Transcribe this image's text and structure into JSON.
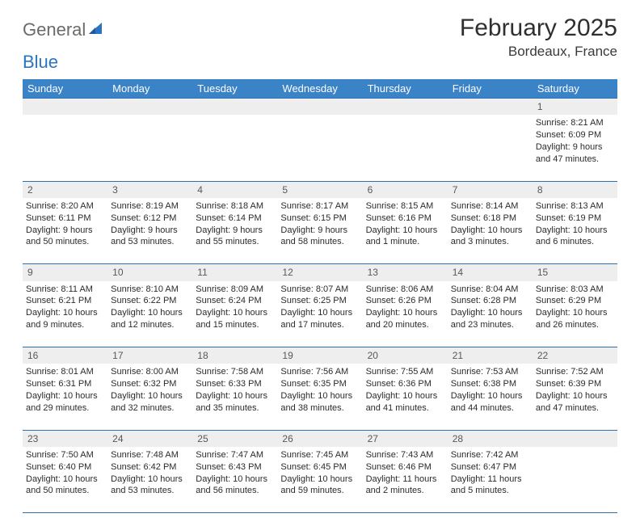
{
  "brand": {
    "word1": "General",
    "word2": "Blue"
  },
  "title": "February 2025",
  "location": "Bordeaux, France",
  "colors": {
    "header_bg": "#3b83c7",
    "header_text": "#ffffff",
    "daynum_bg": "#eeeeee",
    "rule": "#2f6fae",
    "body_text": "#2b2b2b",
    "title_text": "#2f2f2f",
    "logo_gray": "#6b6b6b",
    "logo_blue": "#2b74c0"
  },
  "weekdays": [
    "Sunday",
    "Monday",
    "Tuesday",
    "Wednesday",
    "Thursday",
    "Friday",
    "Saturday"
  ],
  "weeks": [
    [
      null,
      null,
      null,
      null,
      null,
      null,
      {
        "n": "1",
        "sr": "Sunrise: 8:21 AM",
        "ss": "Sunset: 6:09 PM",
        "d1": "Daylight: 9 hours",
        "d2": "and 47 minutes."
      }
    ],
    [
      {
        "n": "2",
        "sr": "Sunrise: 8:20 AM",
        "ss": "Sunset: 6:11 PM",
        "d1": "Daylight: 9 hours",
        "d2": "and 50 minutes."
      },
      {
        "n": "3",
        "sr": "Sunrise: 8:19 AM",
        "ss": "Sunset: 6:12 PM",
        "d1": "Daylight: 9 hours",
        "d2": "and 53 minutes."
      },
      {
        "n": "4",
        "sr": "Sunrise: 8:18 AM",
        "ss": "Sunset: 6:14 PM",
        "d1": "Daylight: 9 hours",
        "d2": "and 55 minutes."
      },
      {
        "n": "5",
        "sr": "Sunrise: 8:17 AM",
        "ss": "Sunset: 6:15 PM",
        "d1": "Daylight: 9 hours",
        "d2": "and 58 minutes."
      },
      {
        "n": "6",
        "sr": "Sunrise: 8:15 AM",
        "ss": "Sunset: 6:16 PM",
        "d1": "Daylight: 10 hours",
        "d2": "and 1 minute."
      },
      {
        "n": "7",
        "sr": "Sunrise: 8:14 AM",
        "ss": "Sunset: 6:18 PM",
        "d1": "Daylight: 10 hours",
        "d2": "and 3 minutes."
      },
      {
        "n": "8",
        "sr": "Sunrise: 8:13 AM",
        "ss": "Sunset: 6:19 PM",
        "d1": "Daylight: 10 hours",
        "d2": "and 6 minutes."
      }
    ],
    [
      {
        "n": "9",
        "sr": "Sunrise: 8:11 AM",
        "ss": "Sunset: 6:21 PM",
        "d1": "Daylight: 10 hours",
        "d2": "and 9 minutes."
      },
      {
        "n": "10",
        "sr": "Sunrise: 8:10 AM",
        "ss": "Sunset: 6:22 PM",
        "d1": "Daylight: 10 hours",
        "d2": "and 12 minutes."
      },
      {
        "n": "11",
        "sr": "Sunrise: 8:09 AM",
        "ss": "Sunset: 6:24 PM",
        "d1": "Daylight: 10 hours",
        "d2": "and 15 minutes."
      },
      {
        "n": "12",
        "sr": "Sunrise: 8:07 AM",
        "ss": "Sunset: 6:25 PM",
        "d1": "Daylight: 10 hours",
        "d2": "and 17 minutes."
      },
      {
        "n": "13",
        "sr": "Sunrise: 8:06 AM",
        "ss": "Sunset: 6:26 PM",
        "d1": "Daylight: 10 hours",
        "d2": "and 20 minutes."
      },
      {
        "n": "14",
        "sr": "Sunrise: 8:04 AM",
        "ss": "Sunset: 6:28 PM",
        "d1": "Daylight: 10 hours",
        "d2": "and 23 minutes."
      },
      {
        "n": "15",
        "sr": "Sunrise: 8:03 AM",
        "ss": "Sunset: 6:29 PM",
        "d1": "Daylight: 10 hours",
        "d2": "and 26 minutes."
      }
    ],
    [
      {
        "n": "16",
        "sr": "Sunrise: 8:01 AM",
        "ss": "Sunset: 6:31 PM",
        "d1": "Daylight: 10 hours",
        "d2": "and 29 minutes."
      },
      {
        "n": "17",
        "sr": "Sunrise: 8:00 AM",
        "ss": "Sunset: 6:32 PM",
        "d1": "Daylight: 10 hours",
        "d2": "and 32 minutes."
      },
      {
        "n": "18",
        "sr": "Sunrise: 7:58 AM",
        "ss": "Sunset: 6:33 PM",
        "d1": "Daylight: 10 hours",
        "d2": "and 35 minutes."
      },
      {
        "n": "19",
        "sr": "Sunrise: 7:56 AM",
        "ss": "Sunset: 6:35 PM",
        "d1": "Daylight: 10 hours",
        "d2": "and 38 minutes."
      },
      {
        "n": "20",
        "sr": "Sunrise: 7:55 AM",
        "ss": "Sunset: 6:36 PM",
        "d1": "Daylight: 10 hours",
        "d2": "and 41 minutes."
      },
      {
        "n": "21",
        "sr": "Sunrise: 7:53 AM",
        "ss": "Sunset: 6:38 PM",
        "d1": "Daylight: 10 hours",
        "d2": "and 44 minutes."
      },
      {
        "n": "22",
        "sr": "Sunrise: 7:52 AM",
        "ss": "Sunset: 6:39 PM",
        "d1": "Daylight: 10 hours",
        "d2": "and 47 minutes."
      }
    ],
    [
      {
        "n": "23",
        "sr": "Sunrise: 7:50 AM",
        "ss": "Sunset: 6:40 PM",
        "d1": "Daylight: 10 hours",
        "d2": "and 50 minutes."
      },
      {
        "n": "24",
        "sr": "Sunrise: 7:48 AM",
        "ss": "Sunset: 6:42 PM",
        "d1": "Daylight: 10 hours",
        "d2": "and 53 minutes."
      },
      {
        "n": "25",
        "sr": "Sunrise: 7:47 AM",
        "ss": "Sunset: 6:43 PM",
        "d1": "Daylight: 10 hours",
        "d2": "and 56 minutes."
      },
      {
        "n": "26",
        "sr": "Sunrise: 7:45 AM",
        "ss": "Sunset: 6:45 PM",
        "d1": "Daylight: 10 hours",
        "d2": "and 59 minutes."
      },
      {
        "n": "27",
        "sr": "Sunrise: 7:43 AM",
        "ss": "Sunset: 6:46 PM",
        "d1": "Daylight: 11 hours",
        "d2": "and 2 minutes."
      },
      {
        "n": "28",
        "sr": "Sunrise: 7:42 AM",
        "ss": "Sunset: 6:47 PM",
        "d1": "Daylight: 11 hours",
        "d2": "and 5 minutes."
      },
      null
    ]
  ]
}
